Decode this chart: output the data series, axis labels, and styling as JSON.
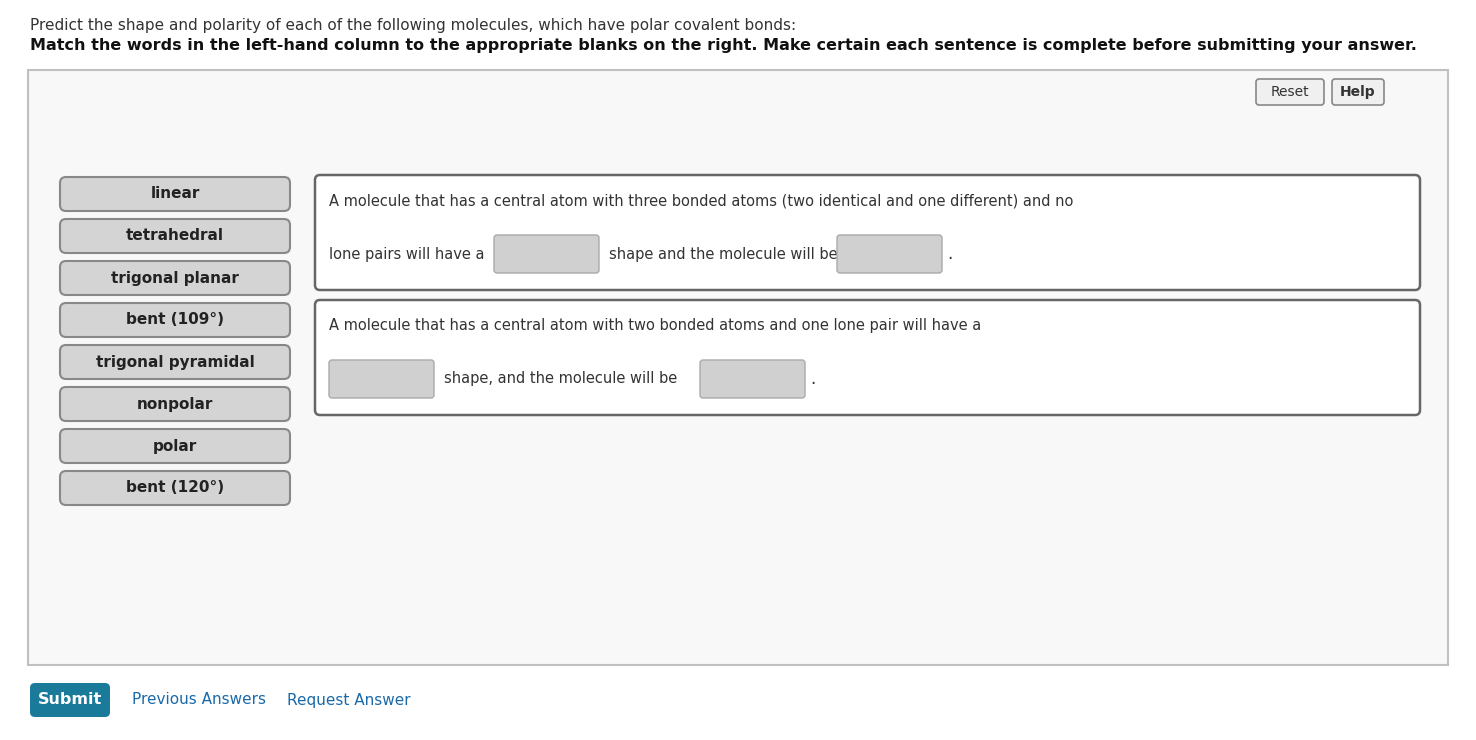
{
  "title_normal": "Predict the shape and polarity of each of the following molecules, which have polar covalent bonds:",
  "title_bold": "Match the words in the left-hand column to the appropriate blanks on the right. Make certain each sentence is complete before submitting your answer.",
  "left_buttons": [
    "linear",
    "tetrahedral",
    "trigonal planar",
    "bent (109°)",
    "trigonal pyramidal",
    "nonpolar",
    "polar",
    "bent (120°)"
  ],
  "box1_line1": "A molecule that has a central atom with three bonded atoms (two identical and one different) and no",
  "box1_line2_pre": "lone pairs will have a",
  "box1_line2_post": "shape and the molecule will be",
  "box2_line1": "A molecule that has a central atom with two bonded atoms and one lone pair will have a",
  "box2_line2_post": "shape, and the molecule will be",
  "reset_label": "Reset",
  "help_label": "Help",
  "submit_label": "Submit",
  "previous_label": "Previous Answers",
  "request_label": "Request Answer",
  "bg_color": "#ffffff",
  "outer_border_color": "#c0c0c0",
  "button_face_color": "#d4d4d4",
  "button_border_color": "#888888",
  "box_border_color": "#666666",
  "input_box_color": "#d0d0d0",
  "submit_bg": "#1a7a9a",
  "submit_fg": "#ffffff",
  "link_color": "#1a6aaa",
  "text_color": "#333333"
}
